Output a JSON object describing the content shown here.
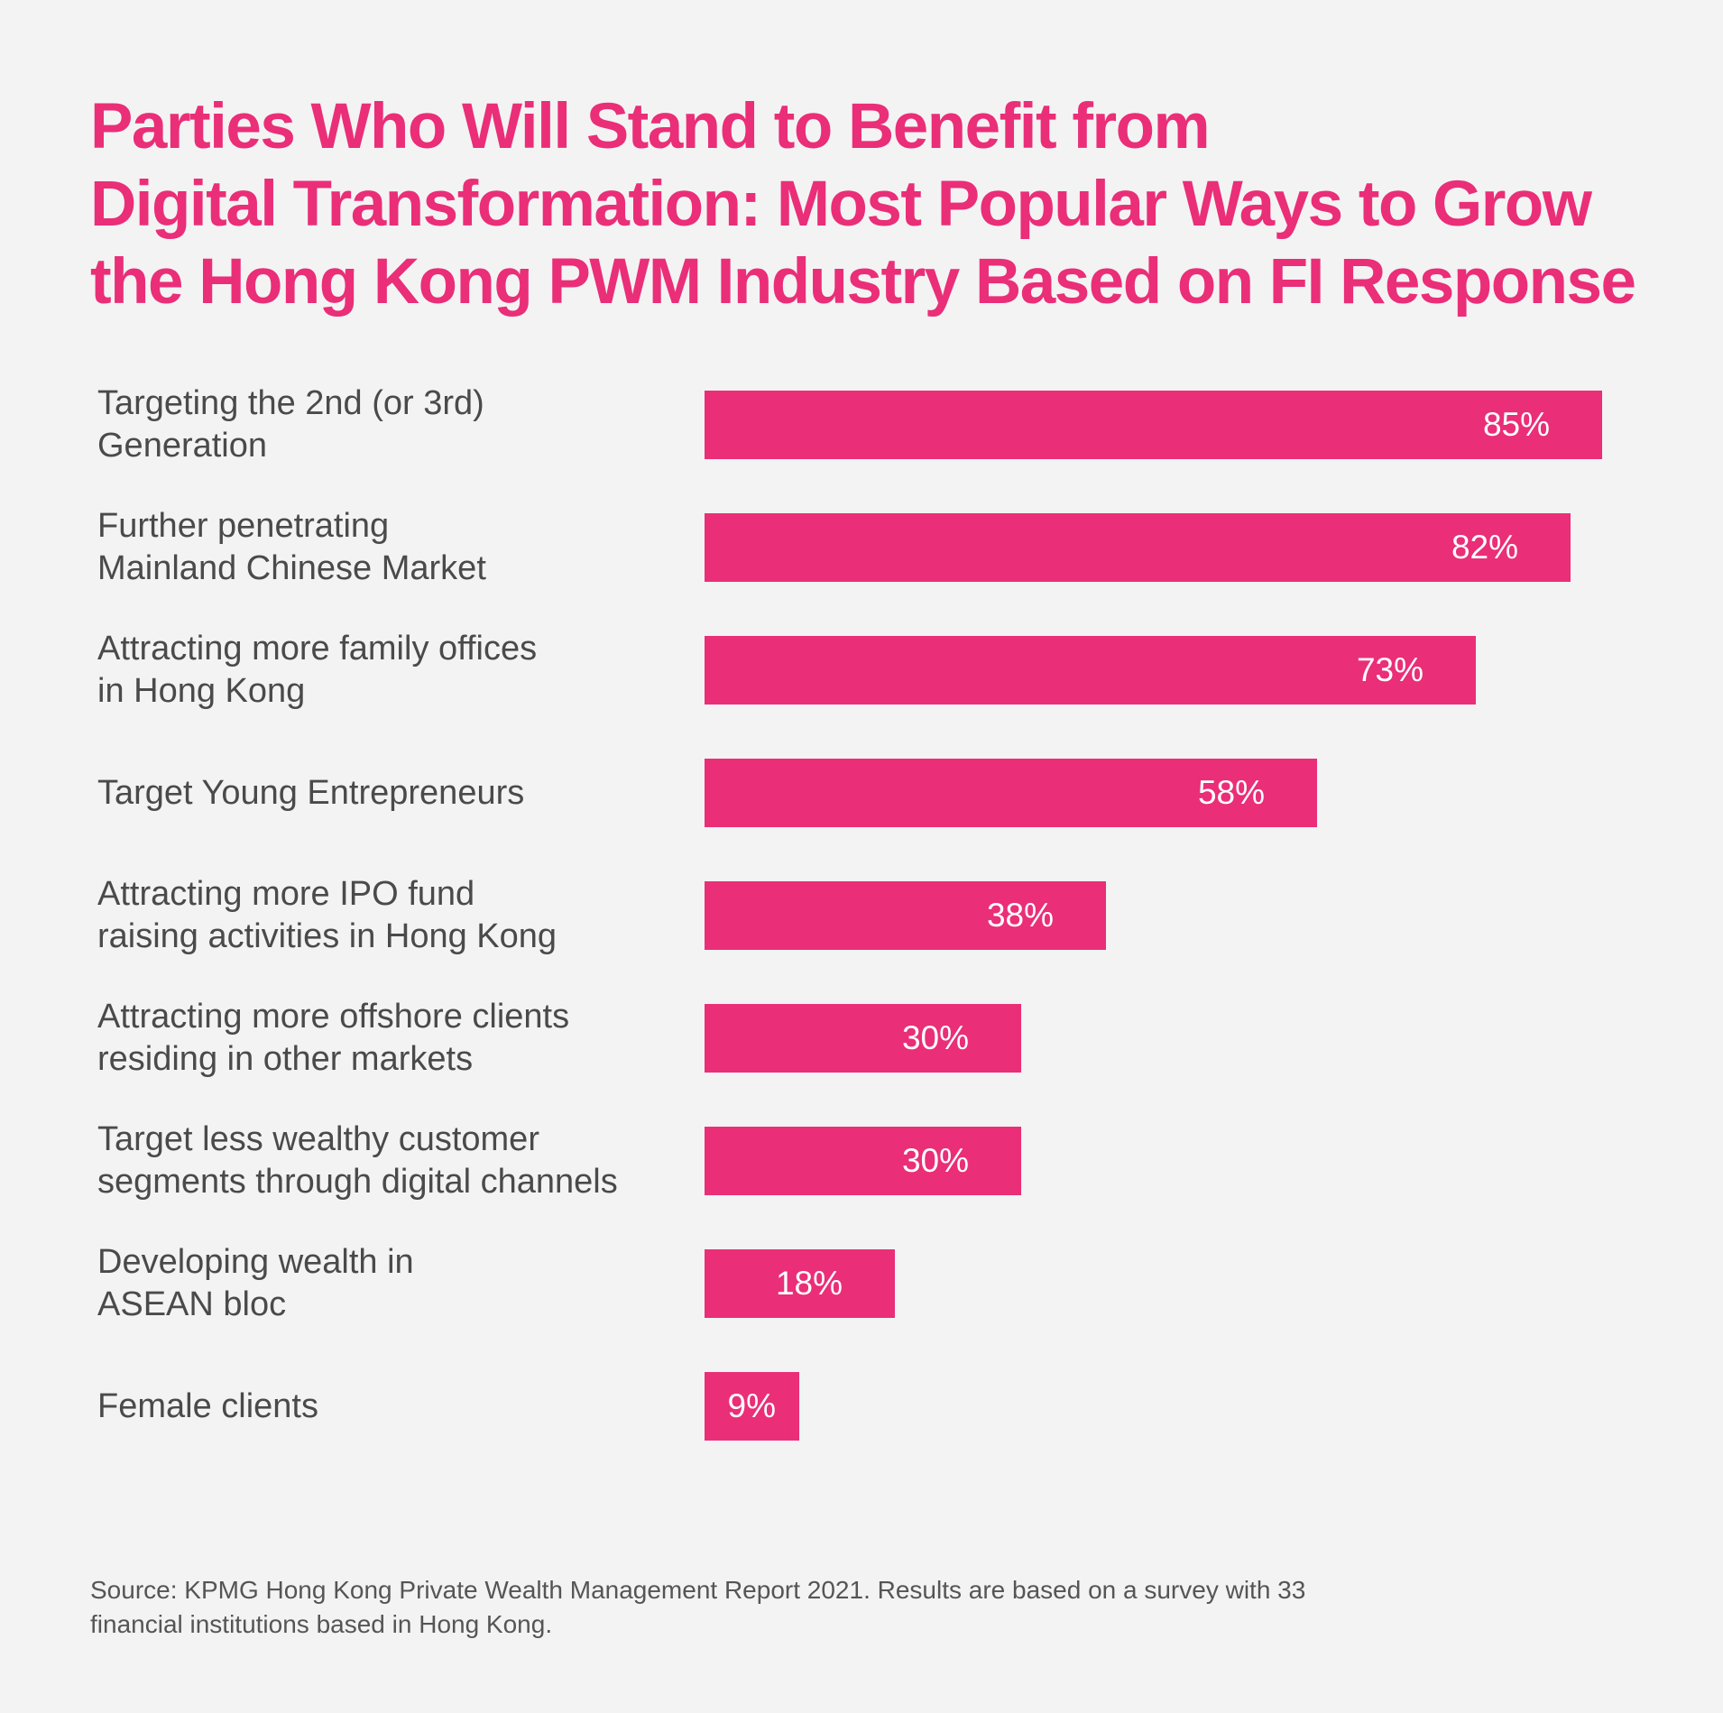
{
  "title_lines": [
    "Parties Who Will Stand to Benefit from",
    "Digital Transformation: Most Popular Ways to Grow",
    "the Hong Kong PWM Industry Based on FI Response"
  ],
  "chart_data": {
    "type": "bar",
    "orientation": "horizontal",
    "title": "Parties Who Will Stand to Benefit from Digital Transformation: Most Popular Ways to Grow the Hong Kong PWM Industry Based on FI Response",
    "categories": [
      [
        "Targeting the 2nd (or 3rd)",
        "Generation"
      ],
      [
        "Further penetrating",
        "Mainland Chinese Market"
      ],
      [
        "Attracting more family offices",
        "in Hong Kong"
      ],
      [
        "Target Young Entrepreneurs"
      ],
      [
        "Attracting more IPO fund",
        "raising activities in Hong Kong"
      ],
      [
        "Attracting more offshore clients",
        "residing in other markets"
      ],
      [
        "Target less wealthy customer",
        "segments through digital channels"
      ],
      [
        "Developing wealth in",
        "ASEAN bloc"
      ],
      [
        "Female clients"
      ]
    ],
    "values": [
      85,
      82,
      73,
      58,
      38,
      30,
      30,
      18,
      9
    ],
    "value_labels": [
      "85%",
      "82%",
      "73%",
      "58%",
      "38%",
      "30%",
      "30%",
      "18%",
      "9%"
    ],
    "unit": "%",
    "xlim": [
      0,
      85
    ],
    "grid": false,
    "legend": "none",
    "bar_color": "#ea2e78"
  },
  "source_lines": [
    "Source: KPMG Hong Kong Private Wealth Management Report 2021. Results are based on a survey with 33",
    "financial institutions based in Hong Kong."
  ],
  "colors": {
    "background": "#f3f3f3",
    "accent": "#ea2e78",
    "label_text": "#4a4a4a",
    "value_text": "#ffffff"
  }
}
